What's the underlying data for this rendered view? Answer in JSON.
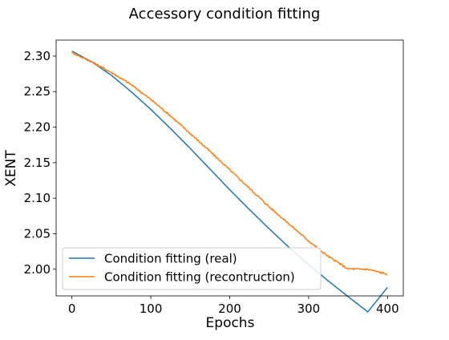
{
  "chart_data": {
    "type": "line",
    "title": "Accessory condition fitting",
    "xlabel": "Epochs",
    "ylabel": "XENT",
    "xlim": [
      -20,
      420
    ],
    "ylim": [
      1.9625,
      2.3225
    ],
    "xticks": [
      0,
      100,
      200,
      300,
      400
    ],
    "xtick_labels": [
      "0",
      "100",
      "200",
      "300",
      "400"
    ],
    "yticks": [
      2.0,
      2.05,
      2.1,
      2.15,
      2.2,
      2.25,
      2.3
    ],
    "ytick_labels": [
      "2.00",
      "2.05",
      "2.10",
      "2.15",
      "2.20",
      "2.25",
      "2.30"
    ],
    "grid": false,
    "legend_position": "lower-left",
    "series": [
      {
        "name": "Condition fitting (real)",
        "color": "#1f77b4",
        "x": [
          0,
          25,
          50,
          75,
          100,
          125,
          150,
          175,
          200,
          225,
          250,
          275,
          300,
          325,
          350,
          375,
          400
        ],
        "y": [
          2.307,
          2.292,
          2.273,
          2.25,
          2.225,
          2.198,
          2.17,
          2.141,
          2.112,
          2.084,
          2.057,
          2.031,
          2.0065,
          1.9835,
          1.9615,
          1.94,
          1.9745
        ]
      },
      {
        "name": "Condition fitting (recontruction)",
        "color": "#ff7f0e",
        "x": [
          0,
          25,
          50,
          75,
          100,
          125,
          150,
          175,
          200,
          225,
          250,
          275,
          300,
          325,
          350,
          375,
          400
        ],
        "y": [
          2.305,
          2.292,
          2.277,
          2.26,
          2.239,
          2.216,
          2.191,
          2.166,
          2.14,
          2.114,
          2.088,
          2.064,
          2.04,
          2.018,
          2.0005,
          2.0,
          1.993
        ]
      }
    ]
  }
}
